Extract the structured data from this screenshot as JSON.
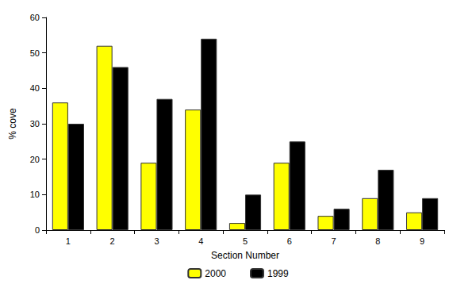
{
  "chart_data": {
    "type": "bar",
    "x_label": "Section Number",
    "y_label": "% cove",
    "categories": [
      "1",
      "2",
      "3",
      "4",
      "5",
      "6",
      "7",
      "8",
      "9"
    ],
    "series": [
      {
        "name": "2000",
        "color": "#ffff00",
        "values": [
          36,
          52,
          19,
          34,
          2,
          19,
          4,
          9,
          5
        ]
      },
      {
        "name": "1999",
        "color": "#000000",
        "values": [
          30,
          46,
          37,
          54,
          10,
          25,
          6,
          17,
          9
        ]
      }
    ],
    "ylim": [
      0,
      60
    ],
    "yticks": [
      0,
      10,
      20,
      30,
      40,
      50,
      60
    ],
    "grid": false,
    "legend": "bottom"
  }
}
